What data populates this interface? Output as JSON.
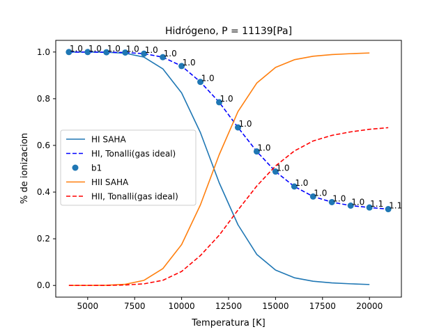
{
  "chart_data": {
    "type": "line",
    "title": "Hidrógeno, P = 11139[Pa]",
    "xlabel": "Temperatura [K]",
    "ylabel": "% de ionizacion",
    "xlim": [
      3300,
      21700
    ],
    "ylim": [
      -0.05,
      1.05
    ],
    "xticks": [
      5000,
      7500,
      10000,
      12500,
      15000,
      17500,
      20000
    ],
    "xtick_labels": [
      "5000",
      "7500",
      "10000",
      "12500",
      "15000",
      "17500",
      "20000"
    ],
    "yticks": [
      0.0,
      0.2,
      0.4,
      0.6,
      0.8,
      1.0
    ],
    "ytick_labels": [
      "0.0",
      "0.2",
      "0.4",
      "0.6",
      "0.8",
      "1.0"
    ],
    "grid": false,
    "legend_position": "center-left",
    "series": [
      {
        "name": "HI SAHA",
        "kind": "line",
        "style": "solid",
        "color": "#1f77b4",
        "x": [
          4000,
          5000,
          6000,
          7000,
          8000,
          9000,
          10000,
          11000,
          12000,
          13000,
          14000,
          15000,
          16000,
          17000,
          18000,
          19000,
          20000
        ],
        "y": [
          1.0,
          1.0,
          0.999,
          0.995,
          0.978,
          0.928,
          0.825,
          0.655,
          0.44,
          0.26,
          0.133,
          0.066,
          0.033,
          0.018,
          0.011,
          0.007,
          0.004
        ]
      },
      {
        "name": "HI, Tonalli(gas ideal)",
        "kind": "line",
        "style": "dashed",
        "color": "#0000ff",
        "x": [
          4000,
          5000,
          6000,
          7000,
          8000,
          9000,
          10000,
          11000,
          12000,
          13000,
          14000,
          15000,
          16000,
          17000,
          18000,
          19000,
          20000,
          21000
        ],
        "y": [
          1.0,
          1.0,
          0.999,
          0.998,
          0.993,
          0.978,
          0.94,
          0.872,
          0.785,
          0.677,
          0.574,
          0.488,
          0.424,
          0.381,
          0.357,
          0.342,
          0.334,
          0.327
        ]
      },
      {
        "name": "b1",
        "kind": "scatter",
        "color": "#1f77b4",
        "x": [
          4000,
          5000,
          6000,
          7000,
          8000,
          9000,
          10000,
          11000,
          12000,
          13000,
          14000,
          15000,
          16000,
          17000,
          18000,
          19000,
          20000,
          21000
        ],
        "y": [
          1.0,
          1.0,
          0.999,
          0.998,
          0.993,
          0.978,
          0.94,
          0.872,
          0.785,
          0.677,
          0.574,
          0.488,
          0.424,
          0.381,
          0.357,
          0.342,
          0.334,
          0.327
        ],
        "labels": [
          "1.0",
          "1.0",
          "1.0",
          "1.0",
          "1.0",
          "1.0",
          "1.0",
          "1.0",
          "1.0",
          "1.0",
          "1.0",
          "1.0",
          "1.0",
          "1.0",
          "1.0",
          "1.0",
          "1.1",
          "1.1"
        ]
      },
      {
        "name": "HII SAHA",
        "kind": "line",
        "style": "solid",
        "color": "#ff7f0e",
        "x": [
          4000,
          5000,
          6000,
          7000,
          8000,
          9000,
          10000,
          11000,
          12000,
          13000,
          14000,
          15000,
          16000,
          17000,
          18000,
          19000,
          20000
        ],
        "y": [
          0.0,
          0.0,
          0.001,
          0.005,
          0.022,
          0.072,
          0.175,
          0.345,
          0.56,
          0.745,
          0.867,
          0.934,
          0.967,
          0.982,
          0.989,
          0.993,
          0.996
        ]
      },
      {
        "name": "HII, Tonalli(gas ideal)",
        "kind": "line",
        "style": "dashed",
        "color": "#ff0000",
        "x": [
          4000,
          5000,
          6000,
          7000,
          8000,
          9000,
          10000,
          11000,
          12000,
          13000,
          14000,
          15000,
          16000,
          17000,
          18000,
          19000,
          20000,
          21000
        ],
        "y": [
          0.0,
          0.0,
          0.0,
          0.002,
          0.007,
          0.022,
          0.06,
          0.128,
          0.215,
          0.323,
          0.426,
          0.512,
          0.576,
          0.619,
          0.643,
          0.658,
          0.669,
          0.676
        ]
      }
    ]
  }
}
